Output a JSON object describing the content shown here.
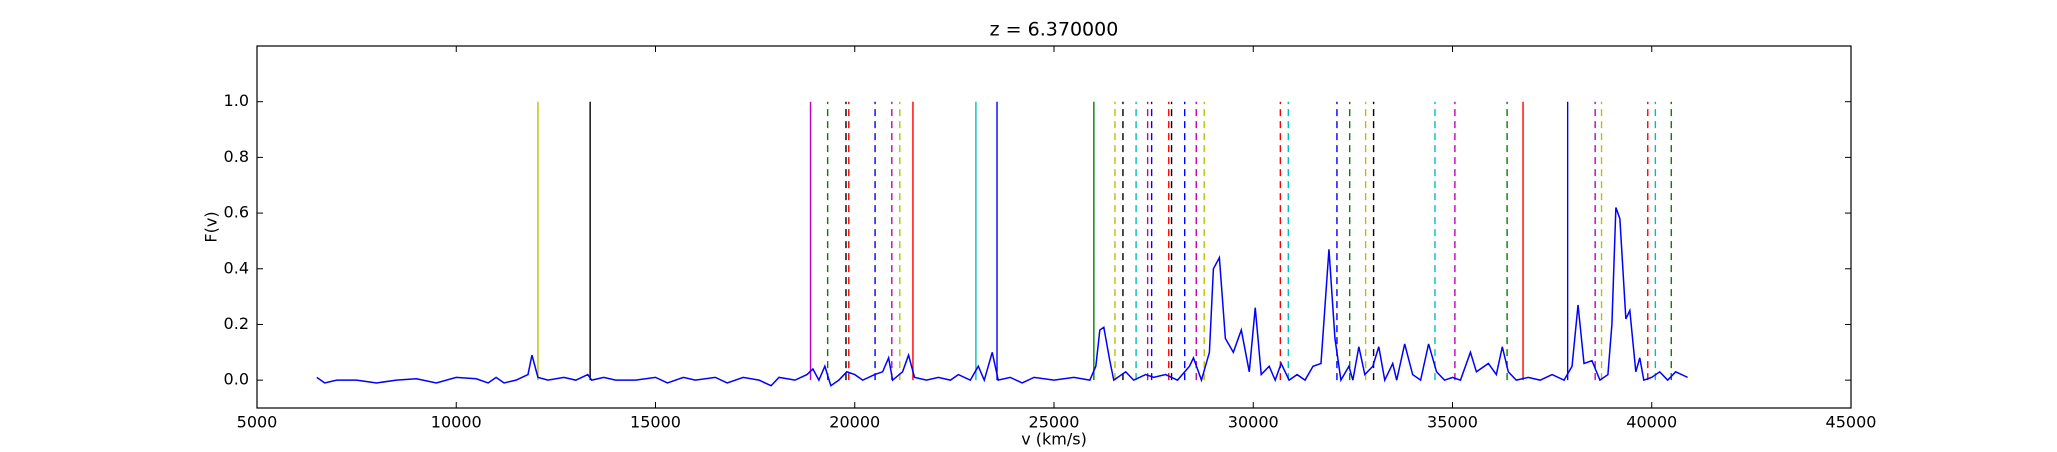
{
  "chart_data": {
    "type": "line",
    "title": "z = 6.370000",
    "x_label": "v (km/s)",
    "y_label": "F(v)",
    "xlim": [
      5000,
      45000
    ],
    "ylim": [
      -0.1,
      1.2
    ],
    "xticks": [
      5000,
      10000,
      15000,
      20000,
      25000,
      30000,
      35000,
      40000,
      45000
    ],
    "yticks": [
      {
        "value": 0,
        "label": "0.0"
      },
      0.2,
      0.4,
      0.6,
      0.8,
      {
        "value": 1,
        "label": "1.0"
      }
    ],
    "grid": false,
    "series": [
      {
        "color": "#0000ff",
        "x": [
          6500,
          6700,
          7000,
          7500,
          8000,
          8500,
          9000,
          9500,
          10000,
          10500,
          10800,
          11000,
          11200,
          11500,
          11800,
          11900,
          12050,
          12300,
          12700,
          13000,
          13300,
          13400,
          13700,
          14000,
          14500,
          15000,
          15300,
          15700,
          16000,
          16500,
          16800,
          17200,
          17600,
          17900,
          18100,
          18500,
          18800,
          18950,
          19100,
          19250,
          19400,
          19600,
          19800,
          20000,
          20200,
          20500,
          20700,
          20850,
          20950,
          21200,
          21350,
          21500,
          21800,
          22100,
          22400,
          22600,
          22900,
          23100,
          23250,
          23450,
          23600,
          23900,
          24200,
          24500,
          25000,
          25500,
          25900,
          26050,
          26150,
          26250,
          26400,
          26500,
          26800,
          27000,
          27300,
          27500,
          27800,
          28100,
          28400,
          28500,
          28700,
          28900,
          29000,
          29150,
          29300,
          29500,
          29700,
          29900,
          30050,
          30200,
          30400,
          30550,
          30700,
          30900,
          31100,
          31300,
          31500,
          31700,
          31900,
          32050,
          32200,
          32400,
          32500,
          32650,
          32800,
          33000,
          33150,
          33300,
          33500,
          33600,
          33800,
          34000,
          34200,
          34400,
          34600,
          34800,
          35000,
          35200,
          35450,
          35600,
          35900,
          36100,
          36250,
          36400,
          36600,
          36900,
          37200,
          37500,
          37800,
          38000,
          38150,
          38300,
          38500,
          38700,
          38900,
          39000,
          39100,
          39200,
          39350,
          39450,
          39600,
          39700,
          39800,
          40000,
          40200,
          40400,
          40600,
          40900
        ],
        "values": [
          0.01,
          -0.01,
          0.0,
          0.0,
          -0.01,
          0.0,
          0.005,
          -0.01,
          0.01,
          0.005,
          -0.01,
          0.01,
          -0.01,
          0.0,
          0.02,
          0.09,
          0.01,
          0.0,
          0.01,
          0.0,
          0.02,
          0.0,
          0.01,
          0.0,
          0.0,
          0.01,
          -0.01,
          0.01,
          0.0,
          0.01,
          -0.01,
          0.01,
          0.0,
          -0.02,
          0.01,
          0.0,
          0.02,
          0.04,
          0.0,
          0.05,
          -0.02,
          0.0,
          0.03,
          0.02,
          0.0,
          0.02,
          0.03,
          0.08,
          0.0,
          0.03,
          0.09,
          0.01,
          0.0,
          0.01,
          0.0,
          0.02,
          0.0,
          0.05,
          0.0,
          0.1,
          0.0,
          0.01,
          -0.01,
          0.01,
          0.0,
          0.01,
          0.0,
          0.05,
          0.18,
          0.19,
          0.07,
          0.0,
          0.03,
          0.0,
          0.02,
          0.01,
          0.02,
          0.0,
          0.05,
          0.08,
          0.0,
          0.1,
          0.4,
          0.44,
          0.15,
          0.1,
          0.18,
          0.03,
          0.26,
          0.02,
          0.05,
          0.0,
          0.06,
          0.0,
          0.02,
          0.0,
          0.05,
          0.06,
          0.47,
          0.15,
          0.0,
          0.05,
          0.0,
          0.12,
          0.02,
          0.05,
          0.12,
          0.0,
          0.06,
          0.0,
          0.13,
          0.02,
          0.0,
          0.13,
          0.03,
          0.0,
          0.01,
          0.0,
          0.1,
          0.03,
          0.06,
          0.02,
          0.12,
          0.03,
          0.0,
          0.01,
          0.0,
          0.02,
          0.0,
          0.05,
          0.27,
          0.06,
          0.07,
          0.0,
          0.02,
          0.2,
          0.62,
          0.58,
          0.22,
          0.25,
          0.03,
          0.08,
          0.0,
          0.01,
          0.03,
          0.0,
          0.03,
          0.01
        ]
      }
    ],
    "vline_ymin": 0,
    "vline_ymax": 1,
    "vlines": [
      {
        "x": 12050,
        "color": "#bfbf00",
        "style": "solid"
      },
      {
        "x": 13360,
        "color": "#000000",
        "style": "solid"
      },
      {
        "x": 18890,
        "color": "#bf00bf",
        "style": "solid"
      },
      {
        "x": 19320,
        "color": "#008000",
        "style": "dashed"
      },
      {
        "x": 19780,
        "color": "#000000",
        "style": "dashed"
      },
      {
        "x": 19850,
        "color": "#ff0000",
        "style": "dashed"
      },
      {
        "x": 20510,
        "color": "#0000ff",
        "style": "dashed"
      },
      {
        "x": 20930,
        "color": "#bf00bf",
        "style": "dashed"
      },
      {
        "x": 21130,
        "color": "#bfbf00",
        "style": "dashed"
      },
      {
        "x": 21460,
        "color": "#ff0000",
        "style": "solid"
      },
      {
        "x": 23040,
        "color": "#00bfbf",
        "style": "solid"
      },
      {
        "x": 23570,
        "color": "#0000ff",
        "style": "solid"
      },
      {
        "x": 26000,
        "color": "#008000",
        "style": "solid"
      },
      {
        "x": 26530,
        "color": "#bfbf00",
        "style": "dashed"
      },
      {
        "x": 26730,
        "color": "#000000",
        "style": "dashed"
      },
      {
        "x": 27060,
        "color": "#00bfbf",
        "style": "dashed"
      },
      {
        "x": 27350,
        "color": "#bf00bf",
        "style": "dashed"
      },
      {
        "x": 27450,
        "color": "#0000ff",
        "style": "dashed"
      },
      {
        "x": 27880,
        "color": "#ff0000",
        "style": "dashed"
      },
      {
        "x": 27950,
        "color": "#000000",
        "style": "dashed"
      },
      {
        "x": 28280,
        "color": "#0000ff",
        "style": "dashed"
      },
      {
        "x": 28570,
        "color": "#bf00bf",
        "style": "dashed"
      },
      {
        "x": 28770,
        "color": "#bfbf00",
        "style": "dashed"
      },
      {
        "x": 30680,
        "color": "#ff0000",
        "style": "dashed"
      },
      {
        "x": 30880,
        "color": "#00bfbf",
        "style": "dashed"
      },
      {
        "x": 32100,
        "color": "#0000ff",
        "style": "dashed"
      },
      {
        "x": 32420,
        "color": "#008000",
        "style": "dashed"
      },
      {
        "x": 32820,
        "color": "#bfbf00",
        "style": "dashed"
      },
      {
        "x": 33020,
        "color": "#000000",
        "style": "dashed"
      },
      {
        "x": 34560,
        "color": "#00bfbf",
        "style": "dashed"
      },
      {
        "x": 35060,
        "color": "#bf00bf",
        "style": "dashed"
      },
      {
        "x": 36370,
        "color": "#008000",
        "style": "dashed"
      },
      {
        "x": 36770,
        "color": "#ff0000",
        "style": "solid"
      },
      {
        "x": 37890,
        "color": "#0000ff",
        "style": "solid"
      },
      {
        "x": 38580,
        "color": "#bf00bf",
        "style": "dashed"
      },
      {
        "x": 38740,
        "color": "#bfbf00",
        "style": "dashed"
      },
      {
        "x": 39900,
        "color": "#ff0000",
        "style": "dashed"
      },
      {
        "x": 40090,
        "color": "#00bfbf",
        "style": "dashed"
      },
      {
        "x": 40490,
        "color": "#008000",
        "style": "dashed"
      }
    ]
  }
}
